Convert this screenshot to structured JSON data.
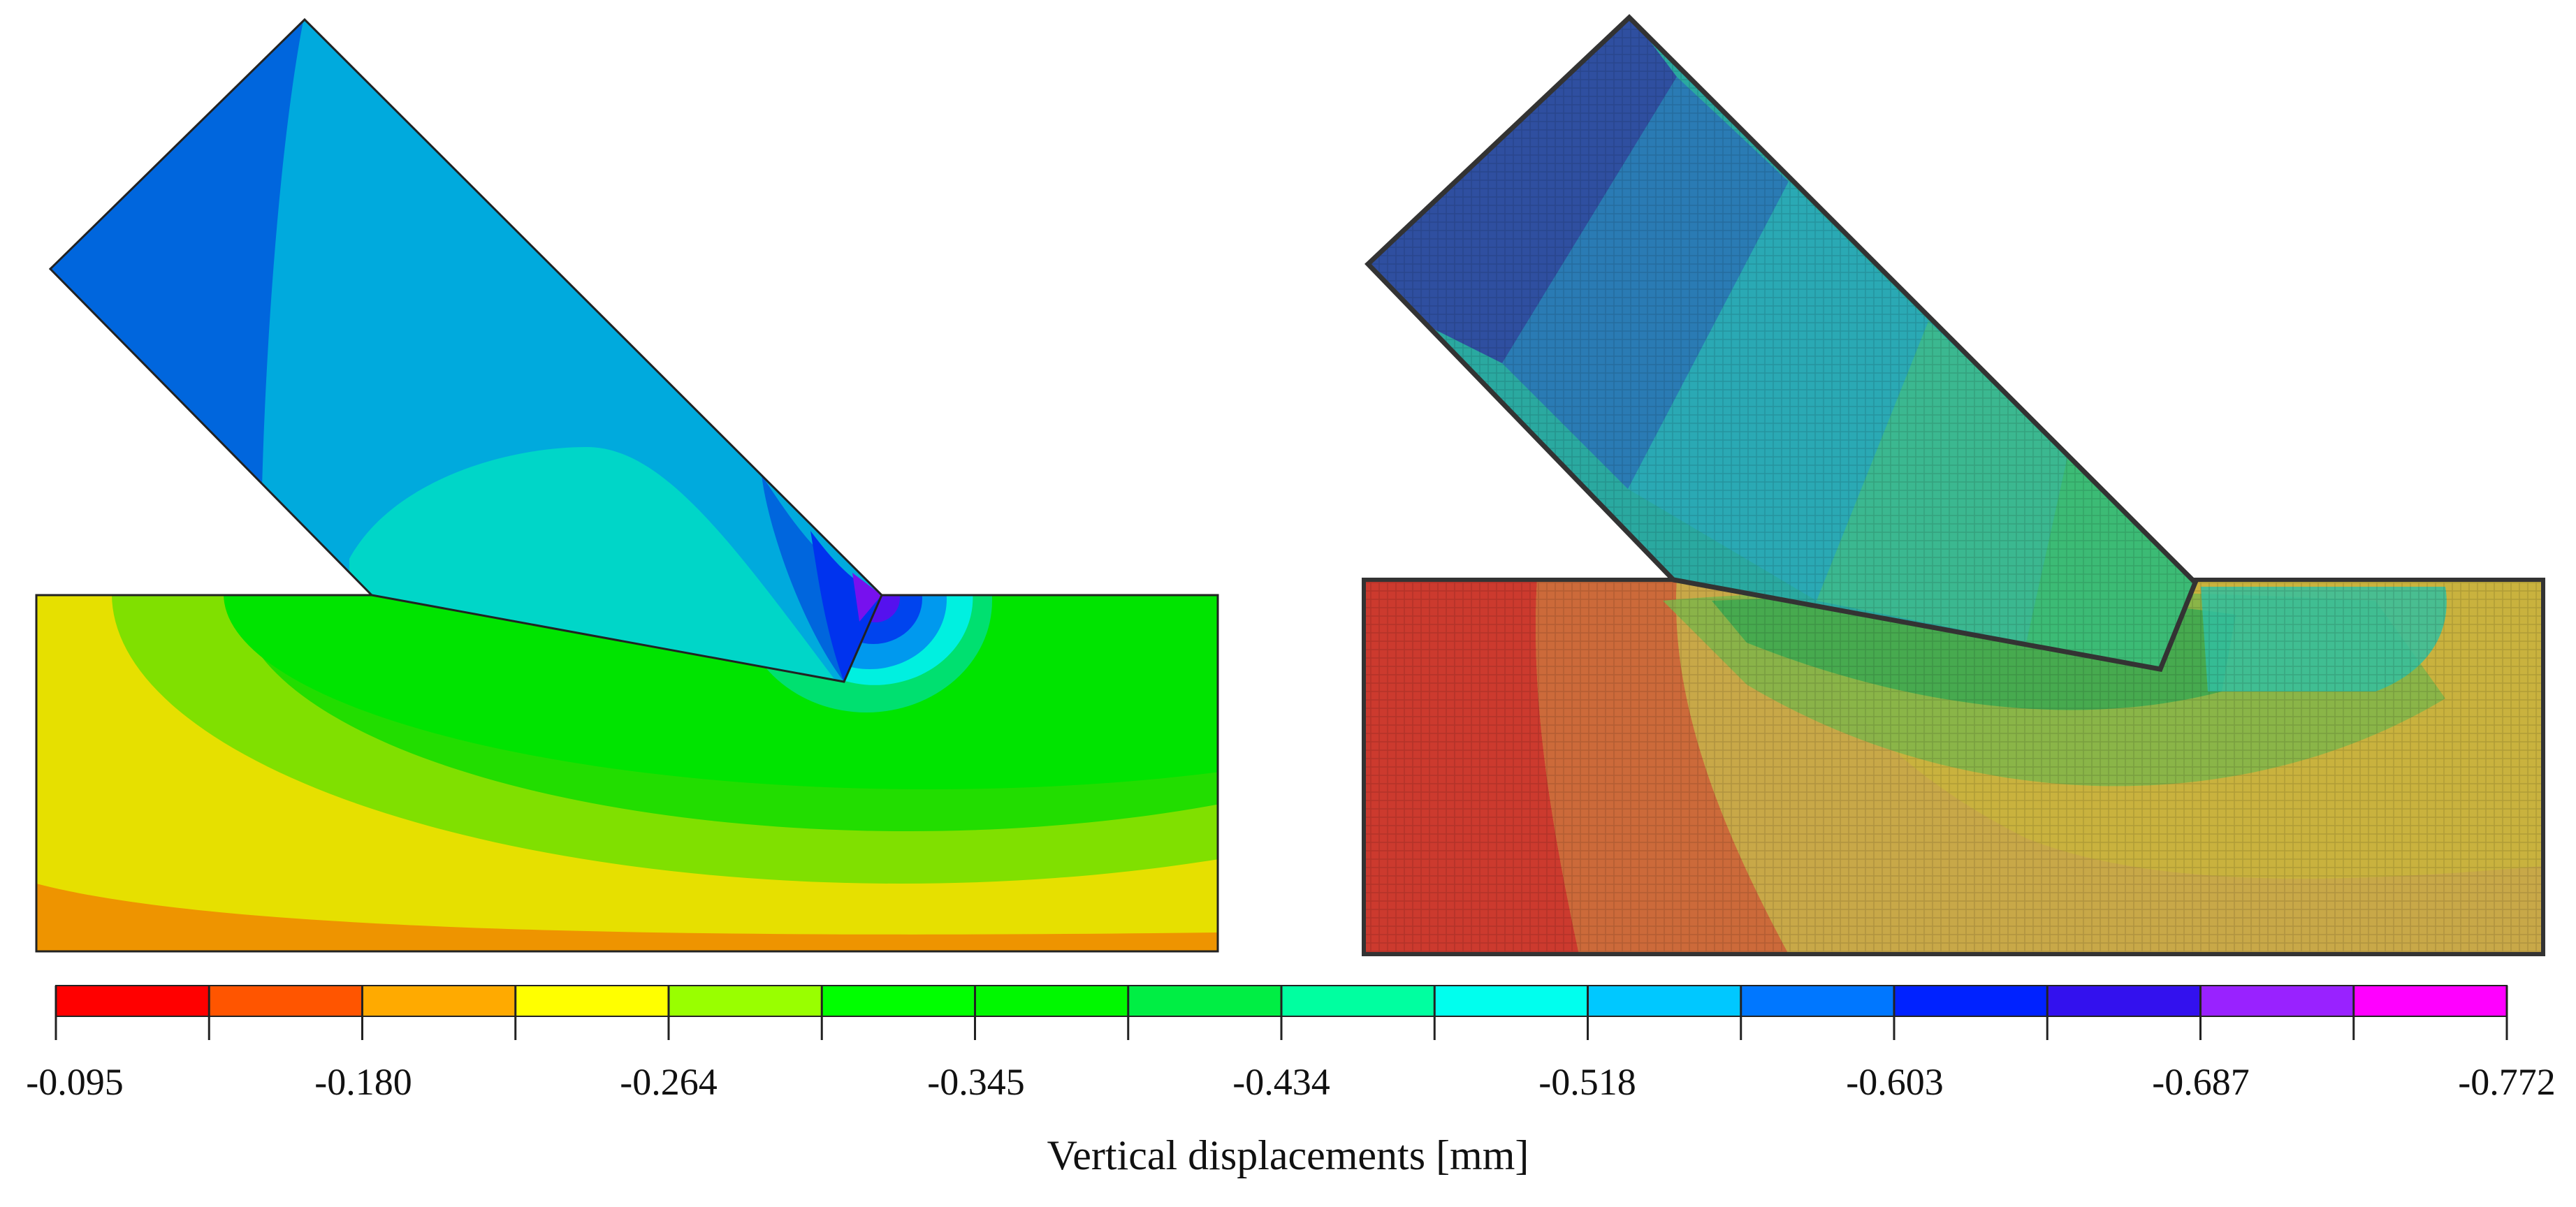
{
  "legend": {
    "title": "Vertical displacements [mm]",
    "tick_labels": [
      "-0.095",
      "-0.180",
      "-0.264",
      "-0.345",
      "-0.434",
      "-0.518",
      "-0.603",
      "-0.687",
      "-0.772"
    ],
    "colors": [
      "#ff0000",
      "#ff5500",
      "#ffaa00",
      "#ffff00",
      "#99ff00",
      "#00ff00",
      "#00f800",
      "#00ee44",
      "#00ffa0",
      "#00ffee",
      "#00c8ff",
      "#0077ff",
      "#0022ff",
      "#3311ee",
      "#9922ff",
      "#ff00ff"
    ]
  },
  "panels": {
    "left": "numerical model contour plot",
    "right": "experimental test photo overlay"
  }
}
